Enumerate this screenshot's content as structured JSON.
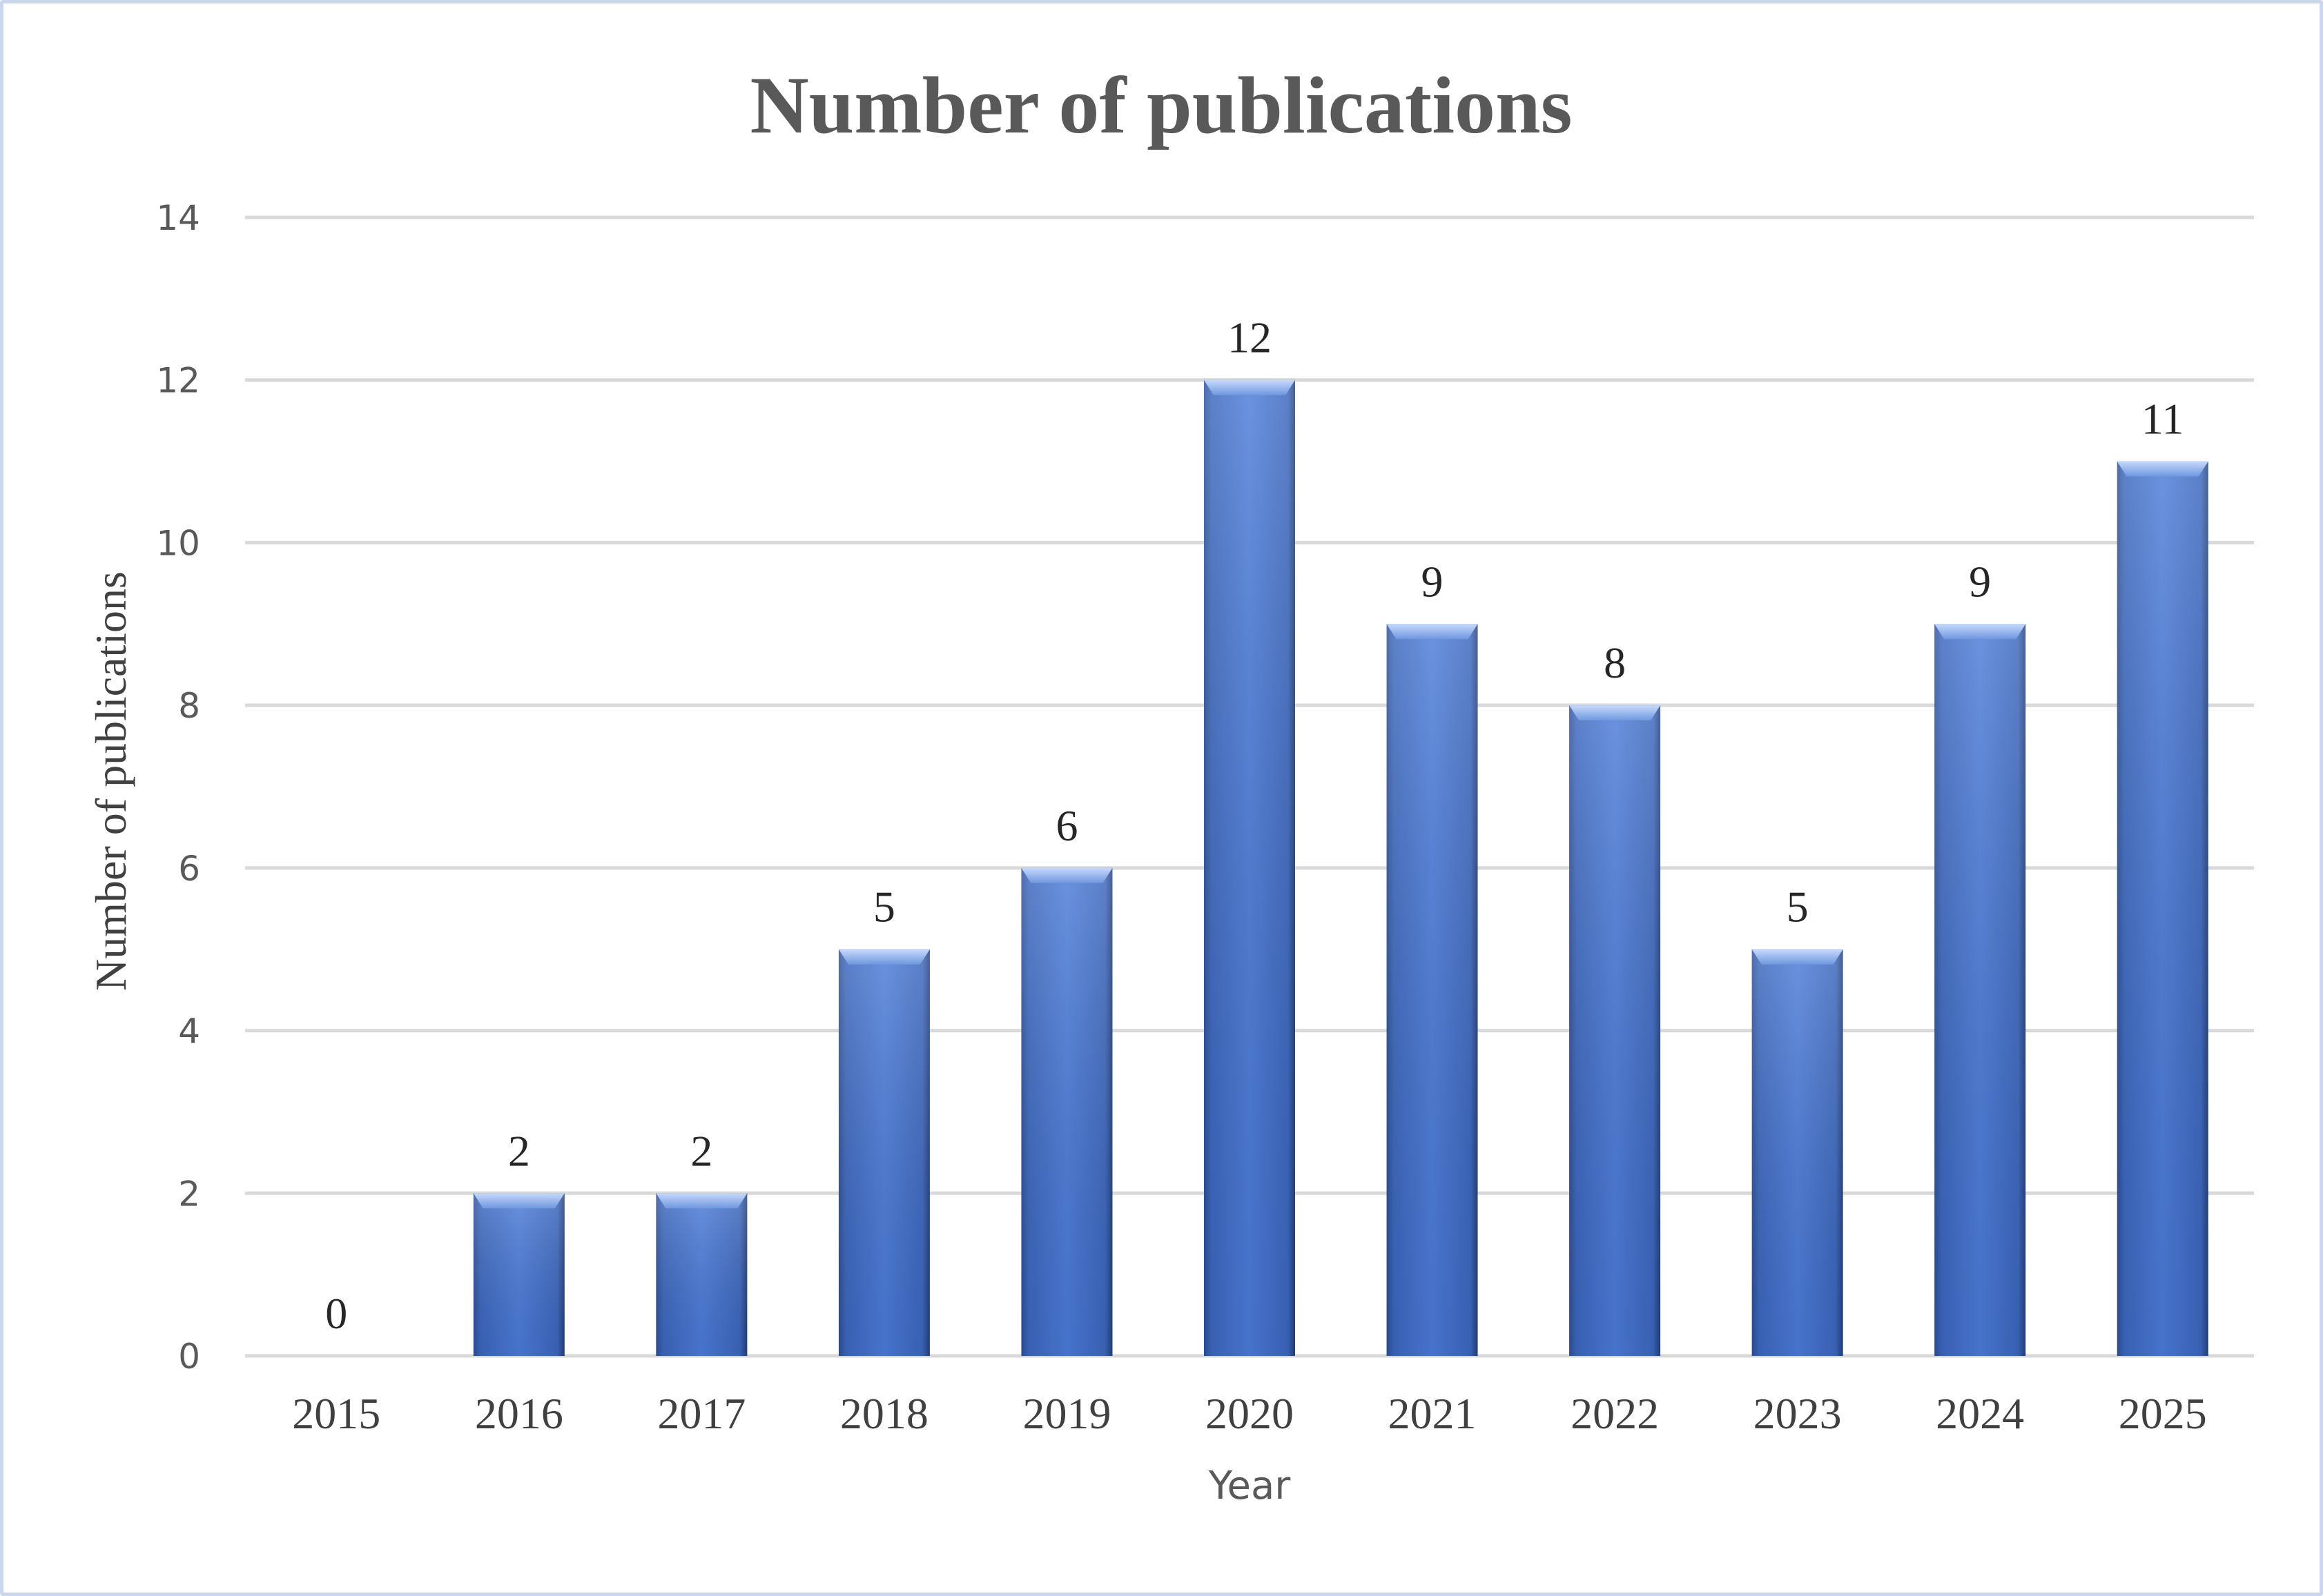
{
  "chart_data": {
    "type": "bar",
    "title": "Number of publications",
    "xlabel": "Year",
    "ylabel": "Number of publications",
    "categories": [
      "2015",
      "2016",
      "2017",
      "2018",
      "2019",
      "2020",
      "2021",
      "2022",
      "2023",
      "2024",
      "2025"
    ],
    "values": [
      0,
      2,
      2,
      5,
      6,
      12,
      9,
      8,
      5,
      9,
      11
    ],
    "data_labels": [
      "0",
      "2",
      "2",
      "5",
      "6",
      "12",
      "9",
      "8",
      "5",
      "9",
      "11"
    ],
    "ylim": [
      0,
      14
    ],
    "yticks": [
      "0",
      "2",
      "4",
      "6",
      "8",
      "10",
      "12",
      "14"
    ],
    "grid": true,
    "legend": "none",
    "colors": {
      "bar": "#4472c4",
      "bar_light": "#6e94dc",
      "bar_dark": "#2f58a8",
      "gridline": "#d9d9d9",
      "frame": "#c9d6ec",
      "text": "#595959"
    }
  }
}
